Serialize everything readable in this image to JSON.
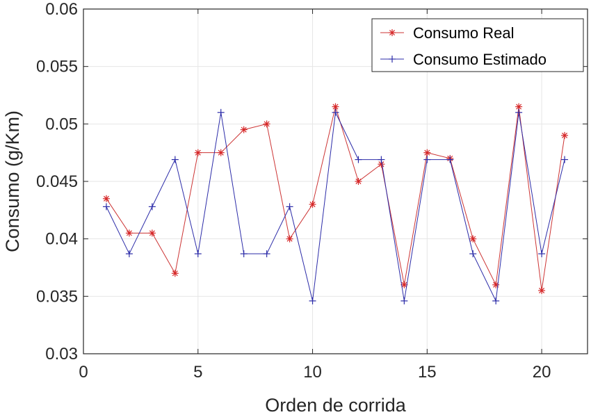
{
  "chart_data": {
    "type": "line",
    "title": "",
    "xlabel": "Orden de corrida",
    "ylabel": "Consumo  (g/Km)",
    "xlim": [
      0,
      22
    ],
    "ylim": [
      0.03,
      0.06
    ],
    "xticks": [
      0,
      5,
      10,
      15,
      20
    ],
    "xtick_labels": [
      "0",
      "5",
      "10",
      "15",
      "20"
    ],
    "yticks": [
      0.03,
      0.035,
      0.04,
      0.045,
      0.05,
      0.055,
      0.06
    ],
    "ytick_labels": [
      "0.03",
      "0.035",
      "0.04",
      "0.045",
      "0.05",
      "0.055",
      "0.06"
    ],
    "grid": true,
    "legend_position": "top-right",
    "x": [
      1,
      2,
      3,
      4,
      5,
      6,
      7,
      8,
      9,
      10,
      11,
      12,
      13,
      14,
      15,
      16,
      17,
      18,
      19,
      20,
      21
    ],
    "series": [
      {
        "name": "Consumo Real",
        "color": "#d62728",
        "line_color": "#cc3333",
        "marker": "asterisk",
        "values": [
          0.0435,
          0.0405,
          0.0405,
          0.037,
          0.0475,
          0.0475,
          0.0495,
          0.05,
          0.04,
          0.043,
          0.0515,
          0.045,
          0.0465,
          0.036,
          0.0475,
          0.047,
          0.04,
          0.036,
          0.0515,
          0.0355,
          0.049
        ]
      },
      {
        "name": "Consumo Estimado",
        "color": "#2b2ba8",
        "line_color": "#2b2ba8",
        "marker": "plus",
        "values": [
          0.0428,
          0.0387,
          0.0428,
          0.0469,
          0.0387,
          0.051,
          0.0387,
          0.0387,
          0.0428,
          0.0346,
          0.051,
          0.0469,
          0.0469,
          0.0346,
          0.0469,
          0.0469,
          0.0387,
          0.0346,
          0.051,
          0.0387,
          0.0469
        ]
      }
    ]
  }
}
